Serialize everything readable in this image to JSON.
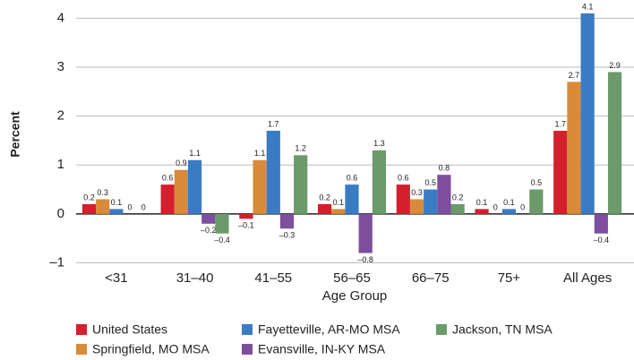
{
  "chart_data": {
    "type": "bar",
    "y_label": "Percent",
    "x_label": "Age Group",
    "categories": [
      "<31",
      "31–40",
      "41–55",
      "56–65",
      "66–75",
      "75+",
      "All Ages"
    ],
    "series": [
      {
        "name": "United States",
        "color": "#d2202f",
        "values": [
          0.2,
          0.6,
          -0.1,
          0.2,
          0.6,
          0.1,
          1.7
        ],
        "value_labels": [
          "0.2",
          "0.6",
          "–0.1",
          "0.2",
          "0.6",
          "0.1",
          "1.7"
        ]
      },
      {
        "name": "Springfield, MO MSA",
        "color": "#d98b3a",
        "values": [
          0.3,
          0.9,
          1.1,
          0.1,
          0.3,
          0,
          2.7
        ],
        "value_labels": [
          "0.3",
          "0.9",
          "1.1",
          "0.1",
          "0.3",
          "0",
          "2.7"
        ]
      },
      {
        "name": "Fayetteville, AR-MO MSA",
        "color": "#3a7cc4",
        "values": [
          0.1,
          1.1,
          1.7,
          0.6,
          0.5,
          0.1,
          4.1
        ],
        "value_labels": [
          "0.1",
          "1.1",
          "1.7",
          "0.6",
          "0.5",
          "0.1",
          "4.1"
        ]
      },
      {
        "name": "Evansville, IN-KY MSA",
        "color": "#7d4f9e",
        "values": [
          0,
          -0.2,
          -0.3,
          -0.8,
          0.8,
          0,
          -0.4
        ],
        "value_labels": [
          "0",
          "–0.2",
          "–0.3",
          "–0.8",
          "0.8",
          "0",
          "–0.4"
        ]
      },
      {
        "name": "Jackson, TN MSA",
        "color": "#6b9a6b",
        "values": [
          0,
          -0.4,
          1.2,
          1.3,
          0.2,
          0.5,
          2.9
        ],
        "value_labels": [
          "0",
          "–0.4",
          "1.2",
          "1.3",
          "0.2",
          "0.5",
          "2.9"
        ]
      }
    ],
    "ylim": [
      -1,
      4.3
    ],
    "yticks": [
      {
        "value": -1,
        "label": "–1"
      },
      0,
      1,
      2,
      3,
      4
    ],
    "grid": true
  }
}
